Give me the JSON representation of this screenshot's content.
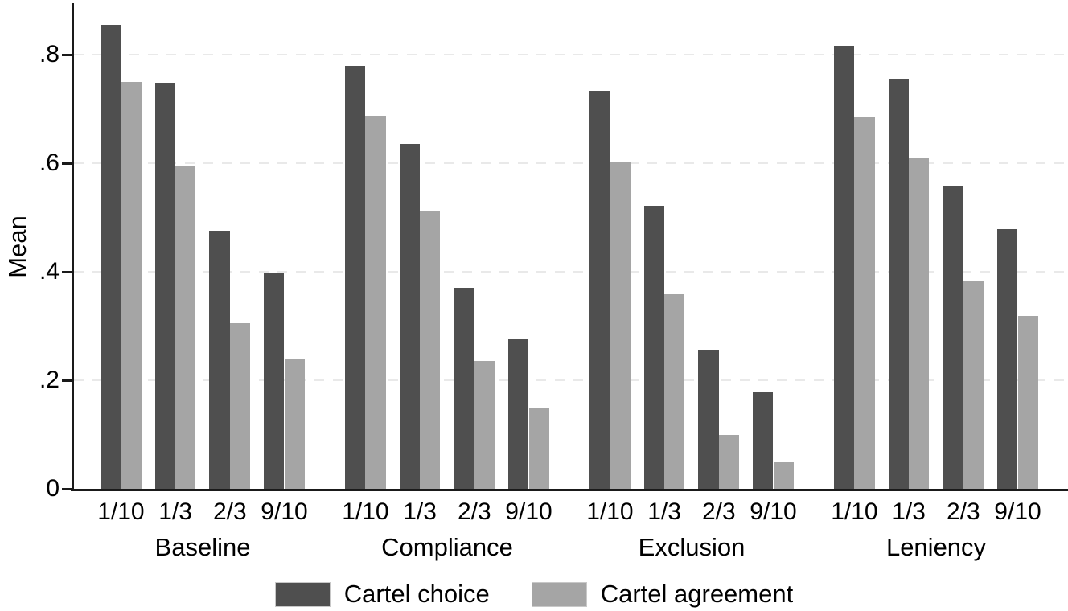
{
  "chart_data": {
    "type": "bar",
    "title": "",
    "xlabel": "",
    "ylabel": "Mean",
    "ylim": [
      0,
      0.9
    ],
    "grid": "horizontal-dashed",
    "legend_position": "bottom-center",
    "y_ticks": [
      {
        "value": 0.0,
        "label": "0"
      },
      {
        "value": 0.2,
        "label": ".2"
      },
      {
        "value": 0.4,
        "label": ".4"
      },
      {
        "value": 0.6,
        "label": ".6"
      },
      {
        "value": 0.8,
        "label": ".8"
      }
    ],
    "categories": [
      "1/10",
      "1/3",
      "2/3",
      "9/10"
    ],
    "series_names": [
      "Cartel choice",
      "Cartel agreement"
    ],
    "groups": [
      {
        "label": "Baseline",
        "cartel_choice": [
          0.855,
          0.748,
          0.475,
          0.397
        ],
        "cartel_agreement": [
          0.75,
          0.595,
          0.305,
          0.24
        ]
      },
      {
        "label": "Compliance",
        "cartel_choice": [
          0.78,
          0.635,
          0.37,
          0.276
        ],
        "cartel_agreement": [
          0.687,
          0.512,
          0.236,
          0.15
        ]
      },
      {
        "label": "Exclusion",
        "cartel_choice": [
          0.733,
          0.522,
          0.256,
          0.178
        ],
        "cartel_agreement": [
          0.601,
          0.358,
          0.1,
          0.049
        ]
      },
      {
        "label": "Leniency",
        "cartel_choice": [
          0.816,
          0.756,
          0.559,
          0.479
        ],
        "cartel_agreement": [
          0.684,
          0.611,
          0.383,
          0.318
        ]
      }
    ],
    "legend": [
      {
        "label": "Cartel choice",
        "color": "#4f4f4f"
      },
      {
        "label": "Cartel agreement",
        "color": "#a5a5a5"
      }
    ]
  },
  "colors": {
    "bar_dark": "#4f4f4f",
    "bar_light": "#a5a5a5",
    "gridline": "#e9e9e9",
    "axis": "#1a1a1a",
    "background": "#ffffff"
  }
}
